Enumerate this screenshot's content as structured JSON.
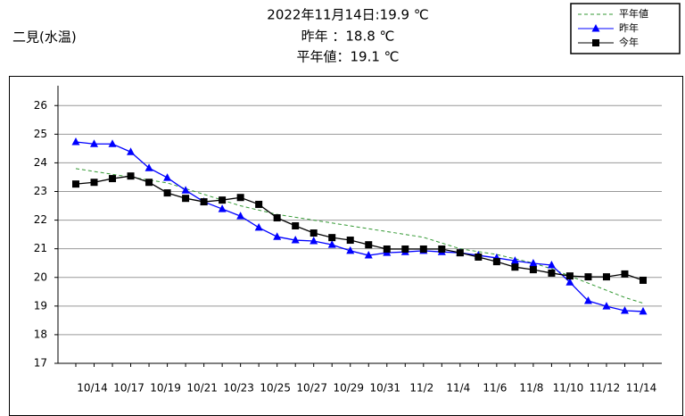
{
  "chart_data": {
    "type": "line",
    "station": "二見(水温)",
    "title": "2022年11月14日:19.9 ℃",
    "subtitle": [
      "昨年 ：18.8 ℃",
      "平年値：19.1 ℃"
    ],
    "categories": [
      null,
      "10/14",
      null,
      "10/17",
      null,
      "10/19",
      null,
      "10/21",
      null,
      "10/23",
      null,
      "10/25",
      null,
      "10/27",
      null,
      "10/29",
      null,
      "10/31",
      null,
      "11/2",
      null,
      "11/4",
      null,
      "11/6",
      null,
      "11/8",
      null,
      "11/10",
      null,
      "11/12",
      null,
      "11/14"
    ],
    "series": [
      {
        "name": "平年値",
        "color": "#339933",
        "style": "dashed",
        "values": [
          23.8,
          23.7,
          23.6,
          23.5,
          23.4,
          23.3,
          23.1,
          22.9,
          22.7,
          22.5,
          22.35,
          22.2,
          22.1,
          22.0,
          21.9,
          21.8,
          21.7,
          21.6,
          21.5,
          21.4,
          21.2,
          21.0,
          20.9,
          20.8,
          20.65,
          20.5,
          20.3,
          20.05,
          19.8,
          19.55,
          19.3,
          19.1
        ]
      },
      {
        "name": "昨年",
        "color": "#0000ff",
        "marker": "triangle",
        "values": [
          24.73,
          24.66,
          24.66,
          24.38,
          23.82,
          23.48,
          23.04,
          22.64,
          22.39,
          22.14,
          21.74,
          21.42,
          21.3,
          21.27,
          21.14,
          20.93,
          20.77,
          20.86,
          20.89,
          20.93,
          20.89,
          20.86,
          20.77,
          20.68,
          20.58,
          20.49,
          20.43,
          19.83,
          19.18,
          18.99,
          18.84,
          18.81
        ]
      },
      {
        "name": "今年",
        "color": "#000000",
        "marker": "square",
        "values": [
          23.26,
          23.32,
          23.45,
          23.54,
          23.32,
          22.95,
          22.76,
          22.64,
          22.7,
          22.79,
          22.55,
          22.08,
          21.8,
          21.55,
          21.39,
          21.3,
          21.14,
          20.99,
          20.99,
          20.99,
          20.99,
          20.86,
          20.71,
          20.55,
          20.36,
          20.27,
          20.15,
          20.05,
          20.02,
          20.02,
          20.12,
          19.9
        ]
      }
    ],
    "ylim": [
      17,
      26.6
    ],
    "yticks": [
      17,
      18,
      19,
      20,
      21,
      22,
      23,
      24,
      25,
      26
    ],
    "grid": true
  }
}
